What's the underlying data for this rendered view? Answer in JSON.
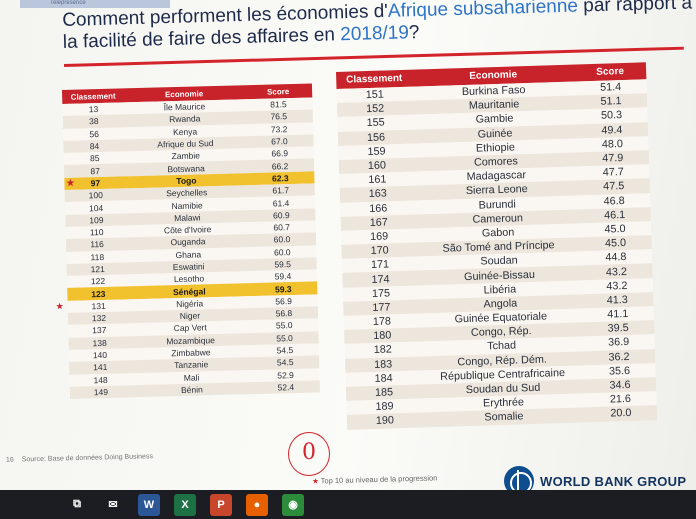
{
  "header": {
    "tab_text": "Telepresence",
    "title_part1": "Comment performent les économies d'",
    "title_highlight": "Afrique subsaharienne",
    "title_part2": " par rapport à la facilité de faire des affaires en ",
    "title_year": "2018/19",
    "title_end": "?"
  },
  "colors": {
    "header_red": "#c8222a",
    "highlight_yellow": "#f2c12e",
    "title_blue": "#2e74c8",
    "wb_blue": "#0f4e8e"
  },
  "left_table": {
    "columns": [
      "Classement",
      "Economie",
      "Score"
    ],
    "rows": [
      {
        "rank": "13",
        "country": "Île Maurice",
        "score": "81.5"
      },
      {
        "rank": "38",
        "country": "Rwanda",
        "score": "76.5"
      },
      {
        "rank": "56",
        "country": "Kenya",
        "score": "73.2"
      },
      {
        "rank": "84",
        "country": "Afrique du Sud",
        "score": "67.0"
      },
      {
        "rank": "85",
        "country": "Zambie",
        "score": "66.9"
      },
      {
        "rank": "87",
        "country": "Botswana",
        "score": "66.2"
      },
      {
        "rank": "97",
        "country": "Togo",
        "score": "62.3",
        "highlight": true,
        "star": true
      },
      {
        "rank": "100",
        "country": "Seychelles",
        "score": "61.7"
      },
      {
        "rank": "104",
        "country": "Namibie",
        "score": "61.4"
      },
      {
        "rank": "109",
        "country": "Malawi",
        "score": "60.9"
      },
      {
        "rank": "110",
        "country": "Côte d'Ivoire",
        "score": "60.7"
      },
      {
        "rank": "116",
        "country": "Ouganda",
        "score": "60.0"
      },
      {
        "rank": "118",
        "country": "Ghana",
        "score": "60.0"
      },
      {
        "rank": "121",
        "country": "Eswatini",
        "score": "59.5"
      },
      {
        "rank": "122",
        "country": "Lesotho",
        "score": "59.4"
      },
      {
        "rank": "123",
        "country": "Sénégal",
        "score": "59.3",
        "highlight": true
      },
      {
        "rank": "131",
        "country": "Nigéria",
        "score": "56.9",
        "star": true
      },
      {
        "rank": "132",
        "country": "Niger",
        "score": "56.8"
      },
      {
        "rank": "137",
        "country": "Cap Vert",
        "score": "55.0"
      },
      {
        "rank": "138",
        "country": "Mozambique",
        "score": "55.0"
      },
      {
        "rank": "140",
        "country": "Zimbabwe",
        "score": "54.5"
      },
      {
        "rank": "141",
        "country": "Tanzanie",
        "score": "54.5"
      },
      {
        "rank": "148",
        "country": "Mali",
        "score": "52.9"
      },
      {
        "rank": "149",
        "country": "Bénin",
        "score": "52.4"
      }
    ]
  },
  "right_table": {
    "columns": [
      "Classement",
      "Economie",
      "Score"
    ],
    "rows": [
      {
        "rank": "151",
        "country": "Burkina Faso",
        "score": "51.4"
      },
      {
        "rank": "152",
        "country": "Mauritanie",
        "score": "51.1"
      },
      {
        "rank": "155",
        "country": "Gambie",
        "score": "50.3"
      },
      {
        "rank": "156",
        "country": "Guinée",
        "score": "49.4"
      },
      {
        "rank": "159",
        "country": "Ethiopie",
        "score": "48.0"
      },
      {
        "rank": "160",
        "country": "Comores",
        "score": "47.9"
      },
      {
        "rank": "161",
        "country": "Madagascar",
        "score": "47.7"
      },
      {
        "rank": "163",
        "country": "Sierra Leone",
        "score": "47.5"
      },
      {
        "rank": "166",
        "country": "Burundi",
        "score": "46.8"
      },
      {
        "rank": "167",
        "country": "Cameroun",
        "score": "46.1"
      },
      {
        "rank": "169",
        "country": "Gabon",
        "score": "45.0"
      },
      {
        "rank": "170",
        "country": "São Tomé and Príncipe",
        "score": "45.0"
      },
      {
        "rank": "171",
        "country": "Soudan",
        "score": "44.8"
      },
      {
        "rank": "174",
        "country": "Guinée-Bissau",
        "score": "43.2"
      },
      {
        "rank": "175",
        "country": "Libéria",
        "score": "43.2"
      },
      {
        "rank": "177",
        "country": "Angola",
        "score": "41.3"
      },
      {
        "rank": "178",
        "country": "Guinée Equatoriale",
        "score": "41.1"
      },
      {
        "rank": "180",
        "country": "Congo, Rép.",
        "score": "39.5"
      },
      {
        "rank": "182",
        "country": "Tchad",
        "score": "36.9"
      },
      {
        "rank": "183",
        "country": "Congo, Rép. Dém.",
        "score": "36.2"
      },
      {
        "rank": "184",
        "country": "République Centrafricaine",
        "score": "35.6"
      },
      {
        "rank": "185",
        "country": "Soudan du Sud",
        "score": "34.6"
      },
      {
        "rank": "189",
        "country": "Erythrée",
        "score": "21.6"
      },
      {
        "rank": "190",
        "country": "Somalie",
        "score": "20.0"
      }
    ]
  },
  "footer": {
    "page_number": "16",
    "source": "Source: Base de données Doing Business",
    "footnote_star": "★",
    "footnote": "Top 10 au niveau de la progression",
    "stamp_glyph": "0",
    "logo_text": "WORLD BANK GROUP"
  },
  "taskbar": {
    "icons": [
      {
        "name": "task-view-icon",
        "glyph": "⧉",
        "color": "#1c1d22"
      },
      {
        "name": "mail-icon",
        "glyph": "✉",
        "color": "#1c1d22"
      },
      {
        "name": "word-icon",
        "glyph": "W",
        "color": "#2b5797"
      },
      {
        "name": "excel-icon",
        "glyph": "X",
        "color": "#1e7145"
      },
      {
        "name": "powerpoint-icon",
        "glyph": "P",
        "color": "#c8462c"
      },
      {
        "name": "firefox-icon",
        "glyph": "●",
        "color": "#e66000"
      },
      {
        "name": "chrome-icon",
        "glyph": "◉",
        "color": "#2d8c3c"
      }
    ]
  }
}
